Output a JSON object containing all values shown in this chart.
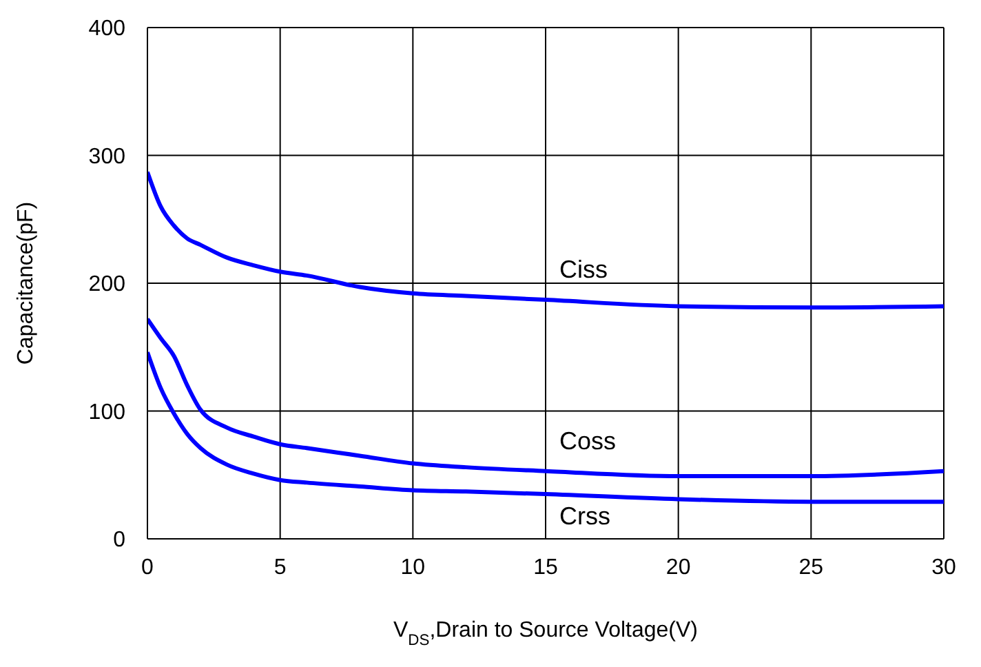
{
  "chart_data": {
    "type": "line",
    "xlabel": "V$_{DS}$,Drain to Source Voltage(V)",
    "ylabel": "Capacitance(pF)",
    "x": [
      0,
      0.5,
      1,
      1.5,
      2,
      3,
      4,
      5,
      6,
      8,
      10,
      12,
      15,
      20,
      25,
      30
    ],
    "series": [
      {
        "name": "Ciss",
        "color": "#0000ff",
        "values": [
          287,
          260,
          245,
          235,
          230,
          220,
          214,
          209,
          206,
          197,
          192,
          190,
          187,
          182,
          181,
          182
        ]
      },
      {
        "name": "Coss",
        "color": "#0000ff",
        "values": [
          172,
          157,
          143,
          120,
          101,
          87,
          80,
          74,
          71,
          65,
          59,
          56,
          53,
          49,
          49,
          53
        ]
      },
      {
        "name": "Crss",
        "color": "#0000ff",
        "values": [
          146,
          118,
          98,
          82,
          71,
          58,
          51,
          46,
          44,
          41,
          38,
          37,
          35,
          31,
          29,
          29
        ]
      }
    ],
    "xlim": [
      0,
      30
    ],
    "xticks": [
      0,
      5,
      10,
      15,
      20,
      25,
      30
    ],
    "ylim": [
      0,
      400
    ],
    "yticks": [
      0,
      100,
      200,
      300,
      400
    ],
    "grid": true,
    "marker": "none",
    "line_style": "solid"
  }
}
